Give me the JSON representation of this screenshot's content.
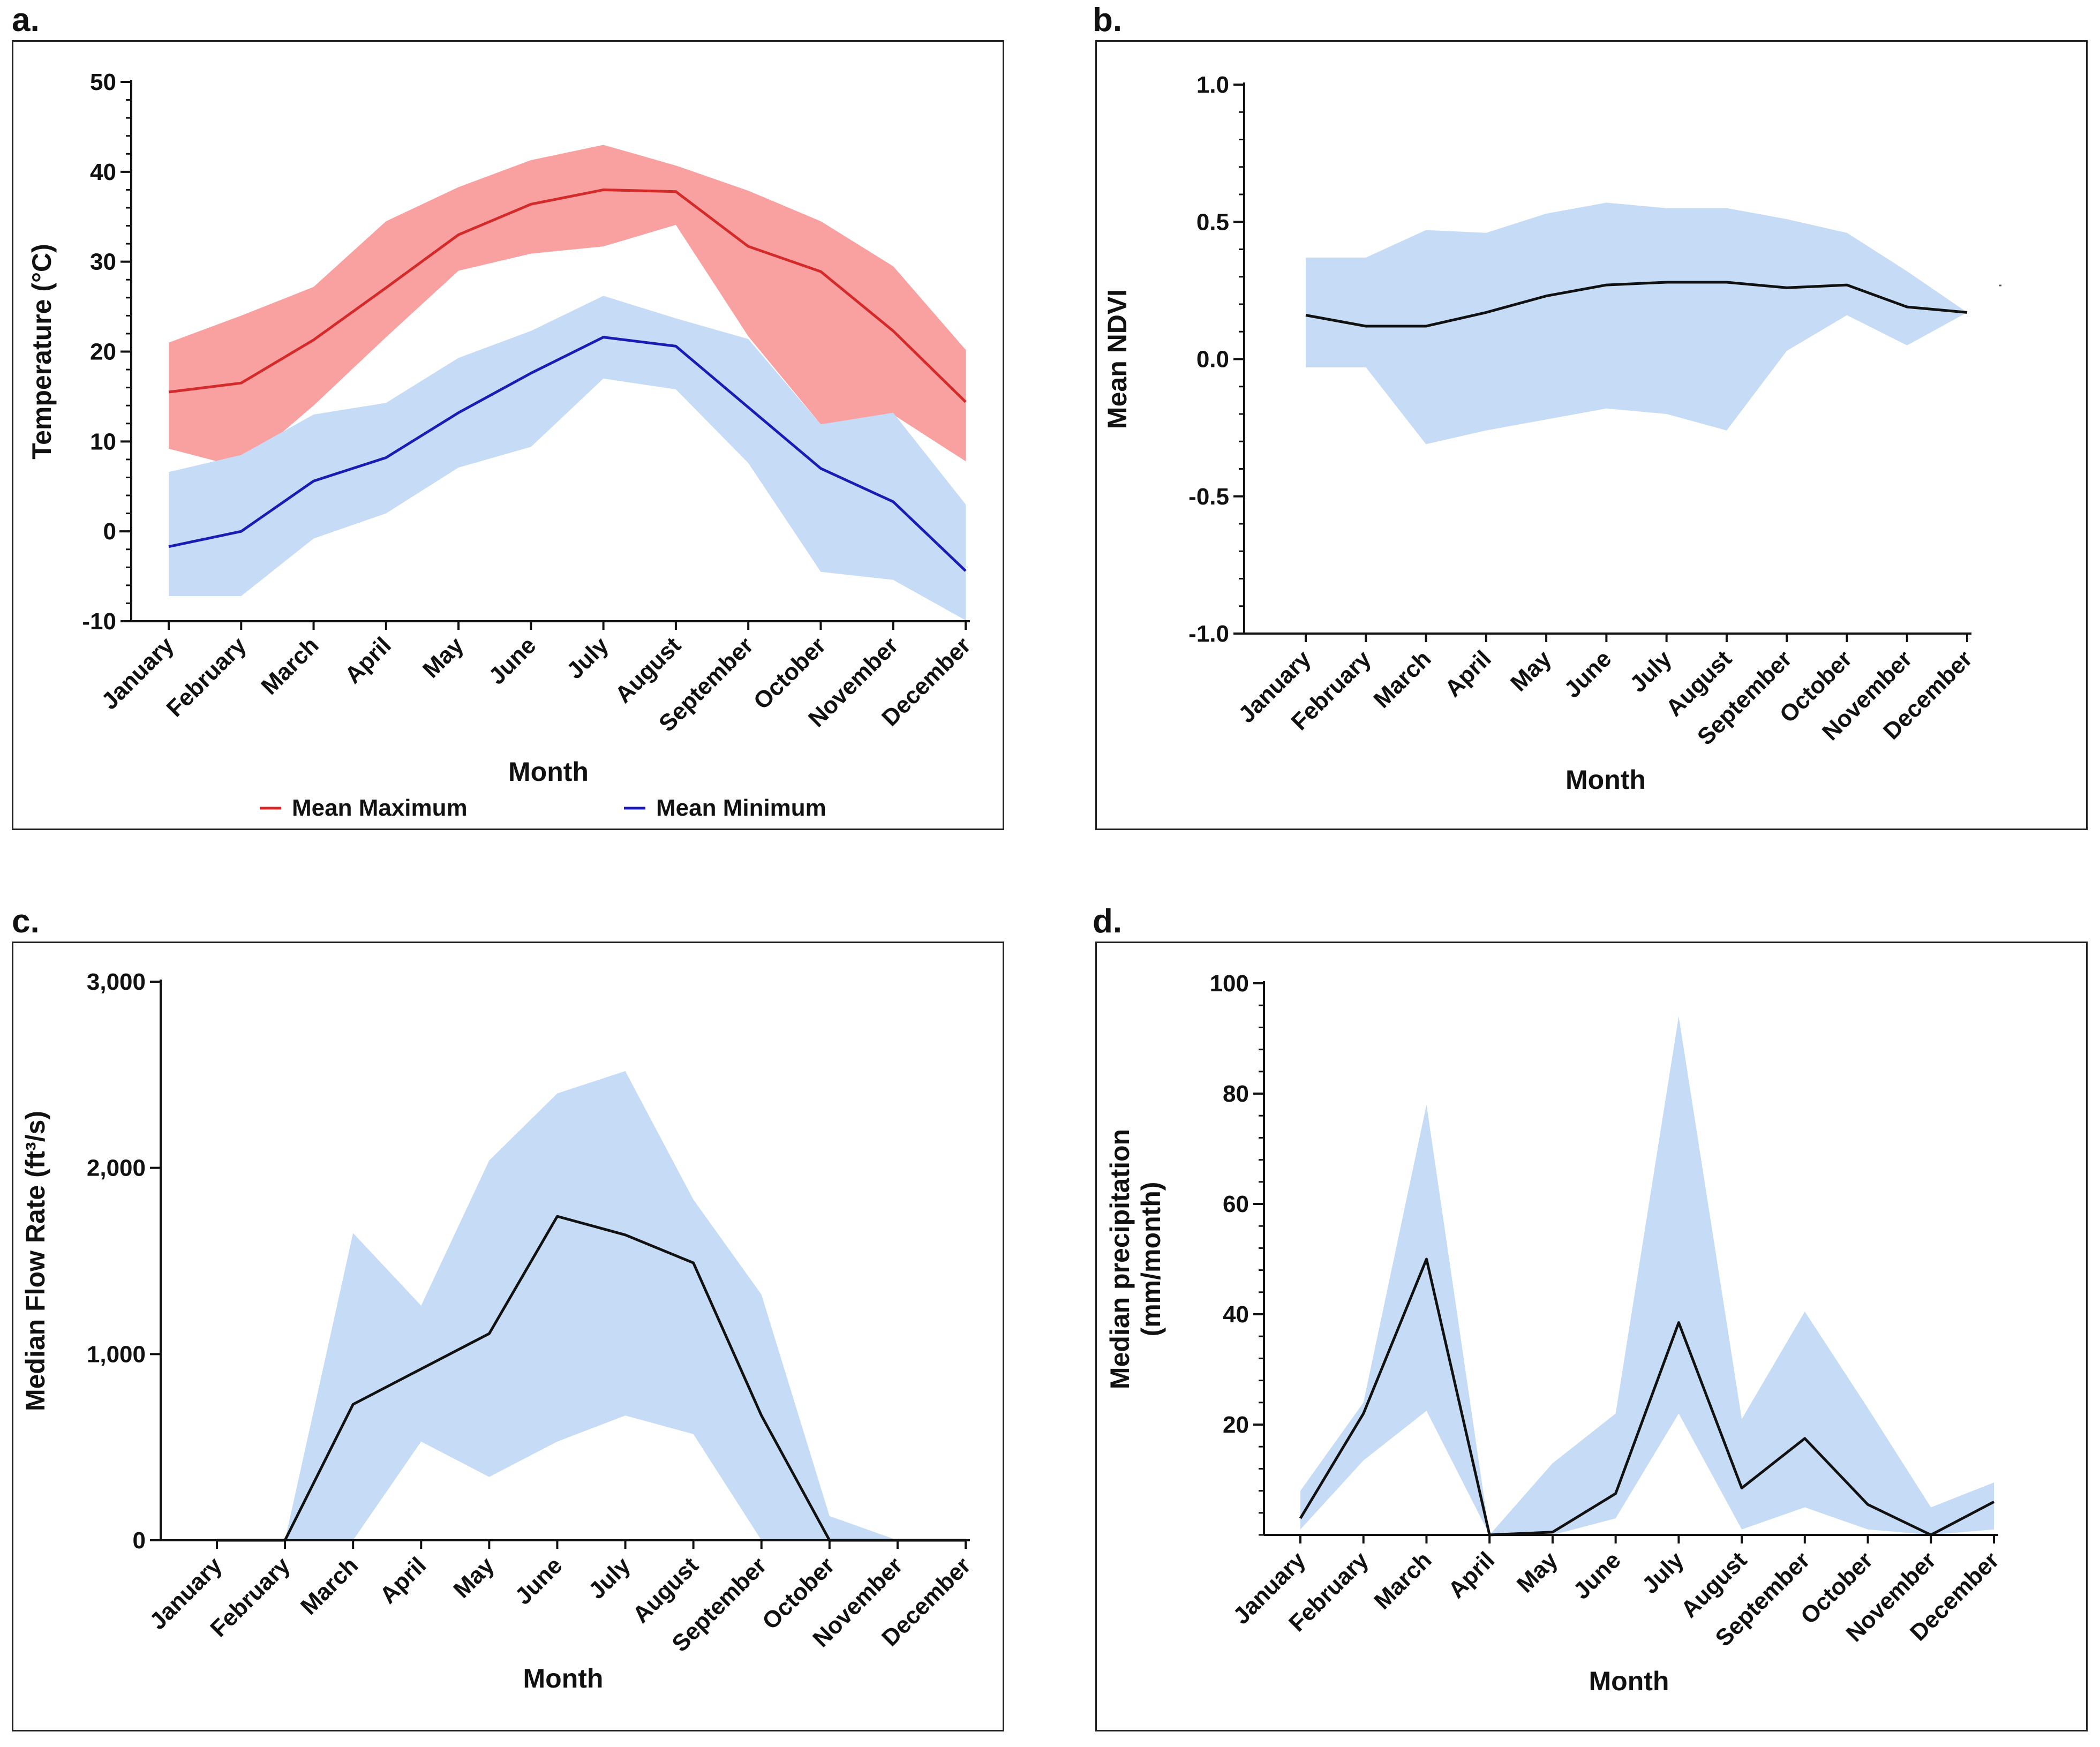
{
  "panels": {
    "a": {
      "label": "a."
    },
    "b": {
      "label": "b."
    },
    "c": {
      "label": "c."
    },
    "d": {
      "label": "d."
    }
  },
  "chart_data": [
    {
      "id": "a",
      "type": "area",
      "categories": [
        "January",
        "February",
        "March",
        "April",
        "May",
        "June",
        "July",
        "August",
        "September",
        "October",
        "November",
        "December"
      ],
      "xlabel": "Month",
      "ylabel": "Temperature (°C)",
      "ylim": [
        -10,
        50
      ],
      "yticks": [
        -10,
        0,
        10,
        20,
        30,
        40,
        50
      ],
      "ytick_labels": [
        "-10",
        "0",
        "10",
        "20",
        "30",
        "40",
        "50"
      ],
      "minor_y_ticks": true,
      "zero_reference_line": "dotted",
      "legend_position": "bottom",
      "series": [
        {
          "name": "Mean Maximum",
          "color": "#d42a2a",
          "band_color": "#f9a0a0",
          "values": [
            15.5,
            16.5,
            21.3,
            27.1,
            33.0,
            36.4,
            38.0,
            37.8,
            31.7,
            28.9,
            22.3,
            14.4
          ],
          "band_upper": [
            21.0,
            24.0,
            27.2,
            34.5,
            38.3,
            41.3,
            43.0,
            40.7,
            37.9,
            34.5,
            29.5,
            20.2
          ],
          "band_lower": [
            9.2,
            7.1,
            14.0,
            21.6,
            29.0,
            30.9,
            31.7,
            34.1,
            21.7,
            11.9,
            13.0,
            7.8
          ]
        },
        {
          "name": "Mean Minimum",
          "color": "#1c1cb4",
          "band_color": "#c6dcf6",
          "values": [
            -1.7,
            0.0,
            5.6,
            8.2,
            13.2,
            17.6,
            21.6,
            20.6,
            13.8,
            7.0,
            3.3,
            -4.4
          ],
          "band_upper": [
            6.6,
            8.5,
            13.0,
            14.3,
            19.3,
            22.3,
            26.2,
            23.7,
            21.4,
            11.9,
            13.2,
            3.0
          ],
          "band_lower": [
            -7.2,
            -7.2,
            -0.8,
            2.0,
            7.1,
            9.4,
            17.0,
            15.8,
            7.6,
            -4.5,
            -5.4,
            -9.9
          ]
        }
      ]
    },
    {
      "id": "b",
      "type": "area",
      "categories": [
        "January",
        "February",
        "March",
        "April",
        "May",
        "June",
        "July",
        "August",
        "September",
        "October",
        "November",
        "December"
      ],
      "xlabel": "Month",
      "ylabel": "Mean NDVI",
      "ylim": [
        -1.0,
        1.0
      ],
      "yticks": [
        -1.0,
        -0.5,
        0.0,
        0.5,
        1.0
      ],
      "ytick_labels": [
        "-1.0",
        "-0.5",
        "0.0",
        "0.5",
        "1.0"
      ],
      "minor_y_ticks": true,
      "series": [
        {
          "color": "#111111",
          "band_color": "#c6dcf6",
          "values": [
            0.16,
            0.12,
            0.12,
            0.17,
            0.23,
            0.27,
            0.28,
            0.28,
            0.26,
            0.27,
            0.19,
            0.17
          ],
          "band_upper": [
            0.37,
            0.37,
            0.47,
            0.46,
            0.53,
            0.57,
            0.55,
            0.55,
            0.51,
            0.46,
            0.32,
            0.17
          ],
          "band_lower": [
            -0.03,
            -0.03,
            -0.31,
            -0.26,
            -0.22,
            -0.18,
            -0.2,
            -0.26,
            0.03,
            0.16,
            0.05,
            0.17
          ]
        }
      ]
    },
    {
      "id": "c",
      "type": "area",
      "categories": [
        "January",
        "February",
        "March",
        "April",
        "May",
        "June",
        "July",
        "August",
        "September",
        "October",
        "November",
        "December"
      ],
      "xlabel": "Month",
      "ylabel": "Median Flow Rate (ft³/s)",
      "ylim": [
        0,
        3000
      ],
      "yticks": [
        0,
        1000,
        2000,
        3000
      ],
      "ytick_labels": [
        "0",
        "1,000",
        "2,000",
        "3,000"
      ],
      "series": [
        {
          "color": "#111111",
          "band_color": "#c6dcf6",
          "values": [
            0,
            0,
            730,
            920,
            1110,
            1740,
            1640,
            1490,
            670,
            0,
            0,
            0
          ],
          "band_upper": [
            0,
            0,
            1650,
            1260,
            2040,
            2400,
            2520,
            1830,
            1320,
            130,
            0,
            0
          ],
          "band_lower": [
            0,
            0,
            0,
            530,
            340,
            530,
            670,
            570,
            0,
            0,
            0,
            0
          ]
        }
      ]
    },
    {
      "id": "d",
      "type": "area",
      "categories": [
        "January",
        "February",
        "March",
        "April",
        "May",
        "June",
        "July",
        "August",
        "September",
        "October",
        "November",
        "December"
      ],
      "xlabel": "Month",
      "ylabel": "Median precipitation (mm/month)",
      "ylabel_lines": [
        "Median precipitation",
        "(mm/month)"
      ],
      "ylim": [
        0,
        100
      ],
      "yticks": [
        20,
        40,
        60,
        80,
        100
      ],
      "ytick_labels": [
        "20",
        "40",
        "60",
        "80",
        "100"
      ],
      "minor_y_ticks": true,
      "series": [
        {
          "color": "#111111",
          "band_color": "#c6dcf6",
          "values": [
            3.0,
            22.0,
            50.0,
            0.0,
            0.5,
            7.5,
            38.5,
            8.5,
            17.5,
            5.5,
            0.0,
            6.0
          ],
          "band_upper": [
            8.0,
            24.0,
            78.0,
            0.0,
            13.0,
            22.0,
            94.0,
            21.0,
            40.5,
            23.0,
            5.0,
            9.5
          ],
          "band_lower": [
            1.0,
            13.5,
            22.5,
            0.0,
            0.0,
            3.0,
            22.0,
            1.0,
            5.0,
            1.0,
            0.0,
            1.0
          ]
        }
      ]
    }
  ]
}
